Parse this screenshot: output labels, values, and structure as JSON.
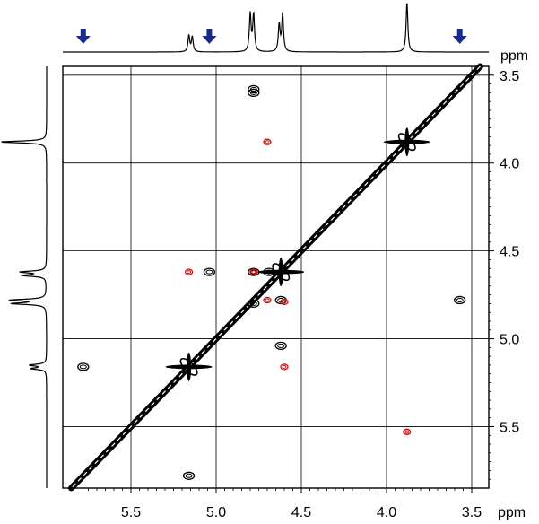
{
  "chart_data": {
    "type": "scatter",
    "title": "",
    "xlabel": "ppm",
    "ylabel": "ppm",
    "xlim": [
      5.9,
      3.4
    ],
    "ylim": [
      3.45,
      5.85
    ],
    "x_ticks": [
      "5.5",
      "5.0",
      "4.5",
      "4.0",
      "3.5"
    ],
    "y_ticks": [
      "3.5",
      "4.0",
      "4.5",
      "5.0",
      "5.5"
    ],
    "grid": true,
    "diagonal": true,
    "series": [
      {
        "color": "#000000",
        "points": [
          {
            "x": 4.78,
            "y": 3.58
          },
          {
            "x": 4.78,
            "y": 3.6
          },
          {
            "x": 3.88,
            "y": 3.88
          },
          {
            "x": 5.04,
            "y": 4.62
          },
          {
            "x": 4.78,
            "y": 4.62
          },
          {
            "x": 4.62,
            "y": 4.62
          },
          {
            "x": 4.69,
            "y": 4.62
          },
          {
            "x": 4.62,
            "y": 4.78
          },
          {
            "x": 3.57,
            "y": 4.78
          },
          {
            "x": 4.78,
            "y": 4.8
          },
          {
            "x": 4.62,
            "y": 5.04
          },
          {
            "x": 5.78,
            "y": 5.16
          },
          {
            "x": 5.16,
            "y": 5.16
          },
          {
            "x": 5.16,
            "y": 5.78
          }
        ]
      },
      {
        "color": "#d01010",
        "points": [
          {
            "x": 4.7,
            "y": 3.88
          },
          {
            "x": 5.16,
            "y": 4.62
          },
          {
            "x": 4.78,
            "y": 4.62
          },
          {
            "x": 4.7,
            "y": 4.78
          },
          {
            "x": 4.6,
            "y": 4.79
          },
          {
            "x": 4.6,
            "y": 5.16
          },
          {
            "x": 3.88,
            "y": 5.53
          }
        ]
      }
    ],
    "projections": {
      "top": {
        "peaks": [
          {
            "ppm": 5.16,
            "height": 0.33
          },
          {
            "ppm": 5.14,
            "height": 0.3
          },
          {
            "ppm": 4.8,
            "height": 0.75
          },
          {
            "ppm": 4.78,
            "height": 0.75
          },
          {
            "ppm": 4.63,
            "height": 0.55
          },
          {
            "ppm": 4.61,
            "height": 0.75
          },
          {
            "ppm": 3.88,
            "height": 1.0
          }
        ],
        "markers": [
          {
            "ppm": 5.78,
            "color": "#1a2a8c"
          },
          {
            "ppm": 5.04,
            "color": "#1a2a8c"
          },
          {
            "ppm": 3.57,
            "color": "#1a2a8c"
          }
        ]
      },
      "left": {
        "peaks": [
          {
            "ppm": 3.88,
            "height": 1.0
          },
          {
            "ppm": 4.62,
            "height": 0.55
          },
          {
            "ppm": 4.64,
            "height": 0.5
          },
          {
            "ppm": 4.78,
            "height": 0.75
          },
          {
            "ppm": 4.8,
            "height": 0.72
          },
          {
            "ppm": 5.15,
            "height": 0.35
          },
          {
            "ppm": 5.17,
            "height": 0.32
          }
        ]
      }
    }
  }
}
